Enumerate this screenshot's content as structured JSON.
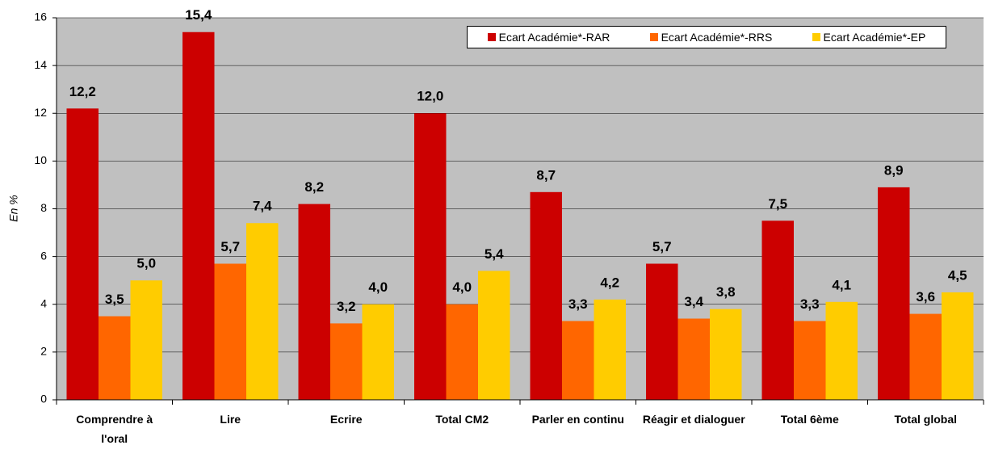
{
  "chart_data": {
    "type": "bar",
    "y_label": "En %",
    "categories": [
      "Comprendre à l'oral",
      "Lire",
      "Ecrire",
      "Total CM2",
      "Parler en continu",
      "Réagir et dialoguer",
      "Total 6ème",
      "Total global"
    ],
    "series": [
      {
        "name": "Ecart Académie*-RAR",
        "color": "#cc0000",
        "values": [
          12.2,
          15.4,
          8.2,
          12.0,
          8.7,
          5.7,
          7.5,
          8.9
        ],
        "value_labels": [
          "12,2",
          "15,4",
          "8,2",
          "12,0",
          "8,7",
          "5,7",
          "7,5",
          "8,9"
        ]
      },
      {
        "name": "Ecart Académie*-RRS",
        "color": "#ff6600",
        "values": [
          3.5,
          5.7,
          3.2,
          4.0,
          3.3,
          3.4,
          3.3,
          3.6
        ],
        "value_labels": [
          "3,5",
          "5,7",
          "3,2",
          "4,0",
          "3,3",
          "3,4",
          "3,3",
          "3,6"
        ]
      },
      {
        "name": "Ecart Académie*-EP",
        "color": "#ffcc00",
        "values": [
          5.0,
          7.4,
          4.0,
          5.4,
          4.2,
          3.8,
          4.1,
          4.5
        ],
        "value_labels": [
          "5,0",
          "7,4",
          "4,0",
          "5,4",
          "4,2",
          "3,8",
          "4,1",
          "4,5"
        ]
      }
    ],
    "ylim": [
      0,
      16
    ],
    "yticks": [
      0,
      2,
      4,
      6,
      8,
      10,
      12,
      14,
      16
    ],
    "grid": true,
    "legend": "top-right"
  }
}
